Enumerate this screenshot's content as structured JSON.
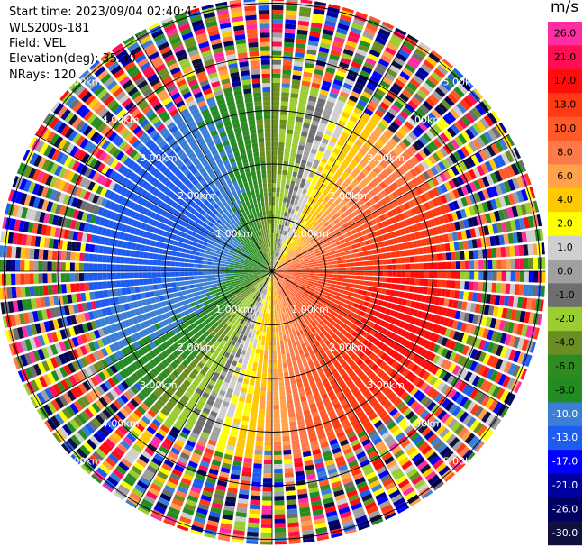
{
  "header": {
    "start_time": "Start time: 2023/09/04 02:40:41",
    "instrument": "WLS200s-181",
    "field": "Field: VEL",
    "elevation": "Elevation(deg): 35.30",
    "nrays": "NRays: 120"
  },
  "colorbar": {
    "unit": "m/s",
    "ticks": [
      "26.0",
      "21.0",
      "17.0",
      "13.0",
      "10.0",
      "8.0",
      "6.0",
      "4.0",
      "2.0",
      "1.0",
      "0.0",
      "-1.0",
      "-2.0",
      "-4.0",
      "-6.0",
      "-8.0",
      "-10.0",
      "-13.0",
      "-17.0",
      "-21.0",
      "-26.0",
      "-30.0"
    ],
    "colors": [
      "#ff2ea0",
      "#ff0f52",
      "#ff0d0d",
      "#ff3a12",
      "#ff5a28",
      "#ff7a4a",
      "#ffa24a",
      "#ffc800",
      "#ffff00",
      "#cfcfcf",
      "#a0a0a0",
      "#6e6e6e",
      "#9acd32",
      "#6b8e23",
      "#2e8b22",
      "#228b22",
      "#3a7fd5",
      "#1e5cf0",
      "#0000ff",
      "#0000a0",
      "#000060",
      "#101040"
    ],
    "dark_label_index_start": 16
  },
  "chart_data": {
    "type": "heatmap",
    "projection": "polar PPI",
    "field": "VEL",
    "units": "m/s",
    "nrays": 120,
    "range_rings_km": [
      1,
      2,
      3,
      4,
      5
    ],
    "ring_labels": [
      "1.00km",
      "2.00km",
      "3.00km",
      "4.00km",
      "5.00km"
    ],
    "max_range_km": 5.1,
    "value_range": [
      -30,
      26
    ],
    "valid_range_km": 3.4,
    "pattern": {
      "toward_sector_deg": [
        200,
        340
      ],
      "toward_peak_ms": -15,
      "away_sector_deg": [
        20,
        160
      ],
      "away_peak_ms": 14,
      "near_zero_band": "northwest-southeast axis",
      "beyond_valid_range": "noise"
    }
  }
}
